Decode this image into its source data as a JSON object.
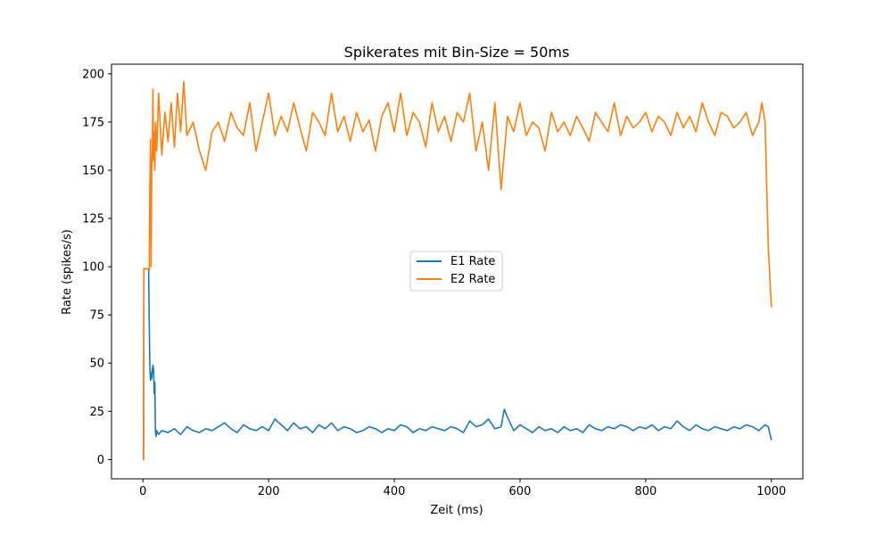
{
  "chart_data": {
    "type": "line",
    "title": "Spikerates mit Bin-Size = 50ms",
    "xlabel": "Zeit (ms)",
    "ylabel": "Rate (spikes/s)",
    "xlim": [
      -50,
      1050
    ],
    "ylim": [
      -10,
      205
    ],
    "xticks": [
      0,
      200,
      400,
      600,
      800,
      1000
    ],
    "yticks": [
      0,
      25,
      50,
      75,
      100,
      125,
      150,
      175,
      200
    ],
    "legend_position": "center",
    "series": [
      {
        "name": "E1 Rate",
        "color": "#1f77b4",
        "x": [
          0,
          1,
          1.5,
          9,
          10,
          11,
          12,
          13,
          14,
          15,
          16,
          17,
          18,
          19,
          20,
          21,
          22,
          25,
          30,
          40,
          50,
          60,
          70,
          80,
          90,
          100,
          110,
          120,
          130,
          140,
          150,
          160,
          170,
          180,
          190,
          200,
          210,
          220,
          230,
          240,
          250,
          260,
          270,
          280,
          290,
          300,
          310,
          320,
          330,
          340,
          350,
          360,
          370,
          380,
          390,
          400,
          410,
          420,
          430,
          440,
          450,
          460,
          470,
          480,
          490,
          500,
          510,
          520,
          530,
          540,
          550,
          560,
          570,
          575,
          580,
          590,
          600,
          610,
          620,
          630,
          640,
          650,
          660,
          670,
          680,
          690,
          700,
          710,
          720,
          730,
          740,
          750,
          760,
          770,
          780,
          790,
          800,
          810,
          820,
          830,
          840,
          850,
          860,
          870,
          880,
          890,
          900,
          910,
          920,
          930,
          940,
          950,
          960,
          970,
          980,
          990,
          995,
          1000
        ],
        "y": [
          0,
          0,
          99,
          99,
          72,
          48,
          41,
          45,
          42,
          47,
          49,
          46,
          34,
          40,
          14,
          12,
          15,
          13,
          15,
          14,
          16,
          13,
          17,
          15,
          14,
          16,
          15,
          17,
          19,
          16,
          14,
          18,
          16,
          15,
          17,
          15,
          21,
          18,
          15,
          19,
          16,
          17,
          14,
          18,
          16,
          19,
          15,
          17,
          16,
          14,
          15,
          17,
          16,
          14,
          16,
          15,
          18,
          17,
          14,
          16,
          15,
          17,
          16,
          15,
          17,
          16,
          14,
          20,
          17,
          18,
          21,
          16,
          17,
          26,
          22,
          15,
          18,
          16,
          14,
          17,
          15,
          16,
          14,
          17,
          15,
          16,
          14,
          18,
          16,
          15,
          17,
          16,
          18,
          17,
          15,
          17,
          16,
          18,
          15,
          17,
          16,
          20,
          17,
          15,
          18,
          16,
          15,
          17,
          16,
          15,
          17,
          16,
          18,
          17,
          15,
          18,
          17,
          10
        ]
      },
      {
        "name": "E2 Rate",
        "color": "#ff7f0e",
        "x": [
          0,
          1,
          1.5,
          9,
          10,
          11,
          12,
          13,
          14,
          15,
          16,
          17,
          18,
          19,
          20,
          22,
          25,
          30,
          35,
          40,
          45,
          50,
          55,
          60,
          65,
          70,
          80,
          90,
          100,
          110,
          120,
          130,
          140,
          150,
          160,
          170,
          180,
          190,
          200,
          210,
          220,
          230,
          240,
          250,
          260,
          270,
          280,
          290,
          300,
          310,
          320,
          330,
          340,
          350,
          360,
          370,
          380,
          390,
          400,
          410,
          420,
          430,
          440,
          450,
          460,
          470,
          480,
          490,
          500,
          510,
          520,
          530,
          540,
          550,
          560,
          570,
          580,
          590,
          600,
          610,
          620,
          630,
          640,
          650,
          660,
          670,
          680,
          690,
          700,
          710,
          720,
          730,
          740,
          750,
          760,
          770,
          780,
          790,
          800,
          810,
          820,
          830,
          840,
          850,
          860,
          870,
          880,
          890,
          900,
          910,
          920,
          930,
          940,
          950,
          960,
          970,
          980,
          985,
          990,
          995,
          1000
        ],
        "y": [
          0,
          0,
          99,
          99,
          98,
          140,
          166,
          100,
          150,
          160,
          192,
          155,
          170,
          150,
          175,
          160,
          190,
          158,
          180,
          165,
          185,
          162,
          190,
          170,
          196,
          168,
          175,
          160,
          150,
          170,
          175,
          165,
          180,
          172,
          168,
          185,
          160,
          175,
          190,
          168,
          178,
          170,
          185,
          172,
          160,
          180,
          175,
          168,
          190,
          170,
          178,
          165,
          180,
          170,
          176,
          160,
          178,
          185,
          170,
          190,
          168,
          180,
          175,
          162,
          185,
          170,
          178,
          165,
          180,
          175,
          190,
          160,
          175,
          150,
          185,
          140,
          178,
          170,
          185,
          168,
          175,
          172,
          160,
          180,
          170,
          175,
          168,
          178,
          172,
          165,
          180,
          175,
          170,
          185,
          168,
          178,
          172,
          175,
          180,
          170,
          178,
          175,
          168,
          180,
          172,
          178,
          170,
          185,
          175,
          168,
          180,
          178,
          172,
          175,
          180,
          168,
          175,
          185,
          175,
          110,
          79
        ]
      }
    ]
  }
}
